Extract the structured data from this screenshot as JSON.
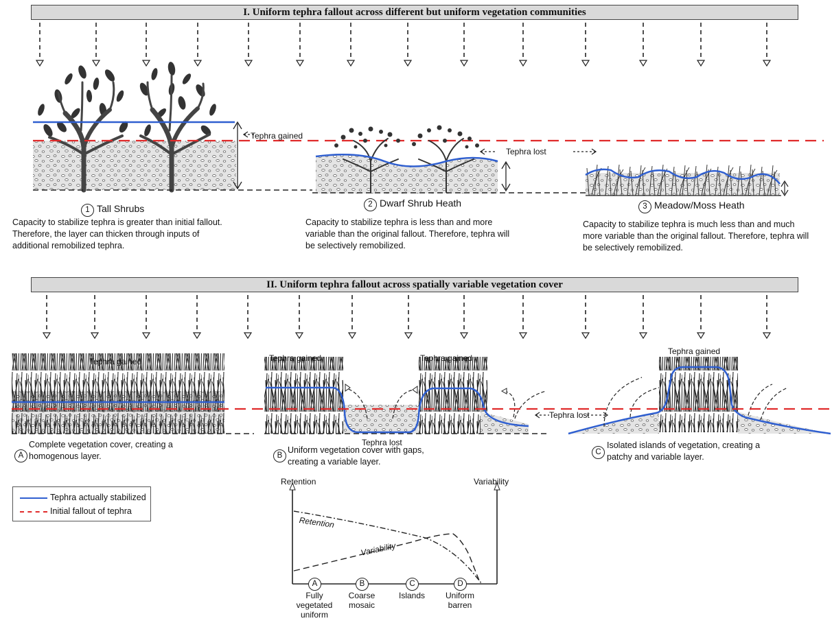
{
  "section_I": {
    "title": "I. Uniform tephra fallout across different but uniform vegetation communities",
    "tall_shrubs": {
      "marker": "1",
      "label": "Tall Shrubs",
      "desc": "Capacity to stabilize tephra is greater than initial fallout. Therefore, the layer can thicken through inputs of additional remobilized tephra.",
      "annotation": "Tephra gained"
    },
    "dwarf_shrub": {
      "marker": "2",
      "label": "Dwarf Shrub Heath",
      "desc": "Capacity to stabilize tephra is less than and more variable than the original fallout. Therefore, tephra will be selectively remobilized.",
      "annotation": "Tephra lost"
    },
    "meadow": {
      "marker": "3",
      "label": "Meadow/Moss Heath",
      "desc": "Capacity to stabilize tephra is much less than and much more variable than the original fallout. Therefore, tephra will be selectively remobilized."
    }
  },
  "section_II": {
    "title": "II. Uniform tephra fallout across spatially variable vegetation cover",
    "complete": {
      "marker": "A",
      "desc": "Complete vegetation cover, creating a homogenous layer.",
      "annotation": "Tephra gained"
    },
    "gaps": {
      "marker": "B",
      "desc": "Uniform vegetation cover with gaps, creating a variable layer.",
      "annotation_left": "Tephra gained",
      "annotation_right": "Tephra gained",
      "annotation_lost": "Tephra lost",
      "annotation_lost_right": "Tephra lost"
    },
    "islands": {
      "marker": "C",
      "desc": "Isolated islands of vegetation, creating a patchy and variable layer.",
      "annotation": "Tephra gained"
    }
  },
  "legend": {
    "stabilized": "Tephra actually stabilized",
    "fallout": "Initial fallout of tephra",
    "colors": {
      "stabilized": "#2f5fd0",
      "fallout": "#e02a2a"
    }
  },
  "graph": {
    "y_left": "Retention",
    "y_right": "Variability",
    "curve_retention": "Retention",
    "curve_variability": "Variability",
    "categories": [
      {
        "marker": "A",
        "label": "Fully vegetated uniform"
      },
      {
        "marker": "B",
        "label": "Coarse mosaic"
      },
      {
        "marker": "C",
        "label": "Islands"
      },
      {
        "marker": "D",
        "label": "Uniform barren"
      }
    ]
  }
}
